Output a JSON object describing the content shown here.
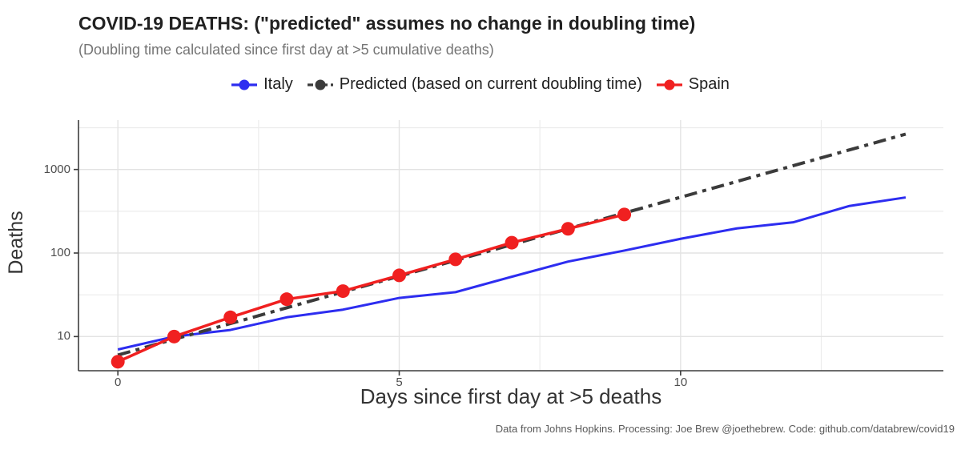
{
  "title": "COVID-19 DEATHS: (\"predicted\" assumes no change in doubling time)",
  "subtitle": "(Doubling time calculated since first day at >5 cumulative deaths)",
  "caption": "Data from Johns Hopkins. Processing: Joe Brew @joethebrew. Code: github.com/databrew/covid19",
  "colors": {
    "italy": "#2D2DF0",
    "predicted": "#3B3B3B",
    "spain": "#F02020",
    "grid_major": "#E3E3E3",
    "grid_minor": "#ECECEC",
    "axis_line": "#3C3C3C",
    "tick_label": "#4D4D4D"
  },
  "chart_data": {
    "type": "line",
    "title": "COVID-19 DEATHS: (\"predicted\" assumes no change in doubling time)",
    "subtitle": "(Doubling time calculated since first day at >5 cumulative deaths)",
    "xlabel": "Days since first day at >5 deaths",
    "ylabel": "Deaths",
    "y_scale": "log10",
    "xlim": [
      -0.7,
      14.67
    ],
    "ylim": [
      3.9,
      3900
    ],
    "grid": true,
    "legend_position": "top",
    "x_ticks": [
      {
        "value": 0,
        "label": "0"
      },
      {
        "value": 5,
        "label": "5"
      },
      {
        "value": 10,
        "label": "10"
      }
    ],
    "y_ticks": [
      {
        "value": 10,
        "label": "10"
      },
      {
        "value": 100,
        "label": "100"
      },
      {
        "value": 1000,
        "label": "1000"
      }
    ],
    "x_minor_ticks": [
      2.5,
      7.5,
      12.5
    ],
    "y_minor_ticks": [
      31.62,
      316.2,
      3162
    ],
    "series": [
      {
        "name": "Italy",
        "color": "#2D2DF0",
        "style": "solid",
        "marker": false,
        "line_width": 3,
        "x": [
          0,
          1,
          2,
          3,
          4,
          5,
          6,
          7,
          8,
          9,
          10,
          11,
          12,
          13,
          14
        ],
        "values": [
          7,
          10,
          12,
          17,
          21,
          29,
          34,
          52,
          79,
          107,
          148,
          197,
          233,
          366,
          463
        ]
      },
      {
        "name": "Predicted (based on current doubling time)",
        "color": "#3B3B3B",
        "style": "dot-dash",
        "marker": false,
        "line_width": 4,
        "x": [
          0,
          1,
          2,
          3,
          4,
          5,
          6,
          7,
          8,
          9,
          10,
          11,
          12,
          13,
          14
        ],
        "values": [
          6,
          9.3,
          14.3,
          22.1,
          34.2,
          52.8,
          81.6,
          126,
          195,
          301,
          465,
          719,
          1110,
          1715,
          2650
        ]
      },
      {
        "name": "Spain",
        "color": "#F02020",
        "style": "solid",
        "marker": true,
        "marker_radius": 8.5,
        "line_width": 3.5,
        "x": [
          0,
          1,
          2,
          3,
          4,
          5,
          6,
          7,
          8,
          9
        ],
        "values": [
          5,
          10,
          17,
          28,
          35,
          54,
          84,
          133,
          195,
          289
        ]
      }
    ]
  }
}
